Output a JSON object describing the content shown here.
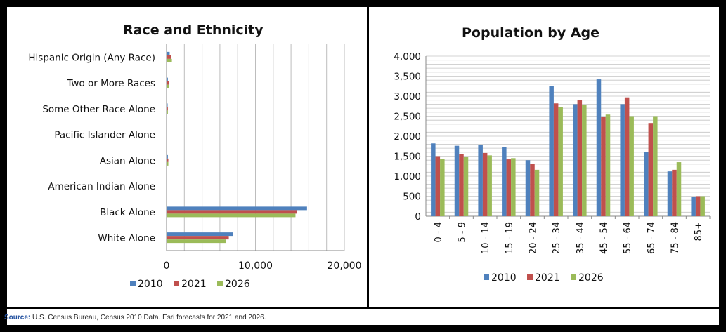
{
  "chart_data": [
    {
      "type": "bar",
      "orientation": "horizontal",
      "title": "Race and Ethnicity",
      "categories": [
        "Hispanic Origin (Any Race)",
        "Two or More Races",
        "Some Other Race Alone",
        "Pacific Islander Alone",
        "Asian Alone",
        "American Indian Alone",
        "Black Alone",
        "White Alone"
      ],
      "series": [
        {
          "name": "2010",
          "color": "#4f81bd",
          "values": [
            350,
            150,
            120,
            10,
            150,
            40,
            15800,
            7500
          ]
        },
        {
          "name": "2021",
          "color": "#c0504d",
          "values": [
            500,
            250,
            150,
            10,
            200,
            50,
            14700,
            7000
          ]
        },
        {
          "name": "2026",
          "color": "#9bbb59",
          "values": [
            600,
            300,
            150,
            10,
            200,
            50,
            14500,
            6700
          ]
        }
      ],
      "xticks": [
        "0",
        "10,000",
        "20,000"
      ],
      "xlim": [
        0,
        20000
      ],
      "grid": true,
      "legend": "bottom"
    },
    {
      "type": "bar",
      "orientation": "vertical",
      "title": "Population by Age",
      "categories": [
        "0 - 4",
        "5 - 9",
        "10 - 14",
        "15 - 19",
        "20 - 24",
        "25 - 34",
        "35 - 44",
        "45 - 54",
        "55 - 64",
        "65 - 74",
        "75 - 84",
        "85+"
      ],
      "series": [
        {
          "name": "2010",
          "color": "#4f81bd",
          "values": [
            1820,
            1760,
            1790,
            1720,
            1400,
            3250,
            2800,
            3420,
            2800,
            1600,
            1120,
            480
          ]
        },
        {
          "name": "2021",
          "color": "#c0504d",
          "values": [
            1500,
            1560,
            1580,
            1420,
            1300,
            2820,
            2900,
            2480,
            2970,
            2330,
            1160,
            500
          ]
        },
        {
          "name": "2026",
          "color": "#9bbb59",
          "values": [
            1430,
            1480,
            1520,
            1450,
            1160,
            2720,
            2780,
            2540,
            2500,
            2500,
            1350,
            500
          ]
        }
      ],
      "yticks": [
        "0",
        "500",
        "1,000",
        "1,500",
        "2,000",
        "2,500",
        "3,000",
        "3,500",
        "4,000"
      ],
      "ylim": [
        0,
        4000
      ],
      "grid": true,
      "legend": "bottom"
    }
  ],
  "source": {
    "label": "Source:",
    "text": "U.S. Census Bureau, Census 2010 Data. Esri forecasts for 2021 and 2026."
  }
}
